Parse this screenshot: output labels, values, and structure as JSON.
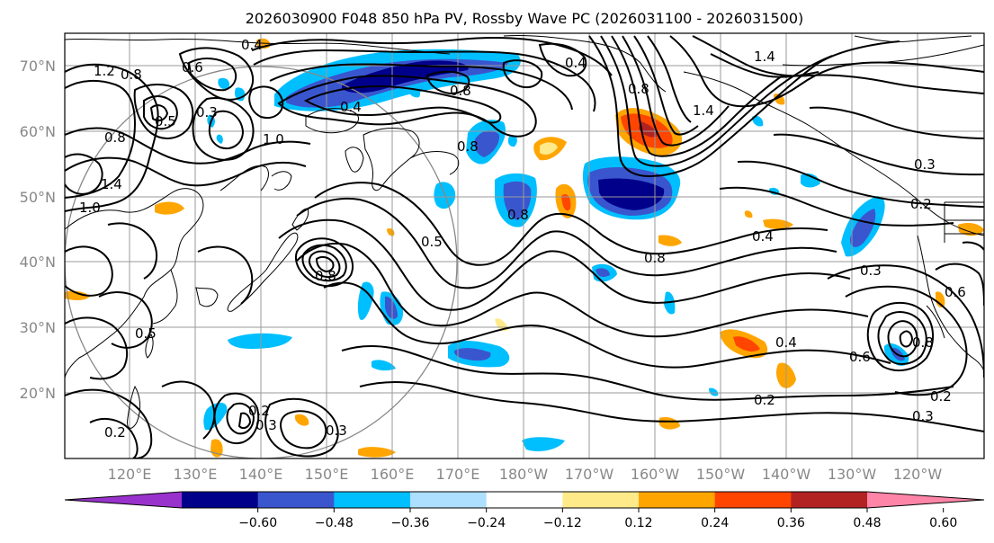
{
  "title": "2026030900 F048 850 hPa PV, Rossby Wave PC (2026031100 - 2026031500)",
  "map": {
    "projection": "PlateCarree",
    "extent_lon": [
      110,
      250
    ],
    "extent_lat": [
      10,
      75
    ],
    "lon_labels": [
      "120°E",
      "130°E",
      "140°E",
      "150°E",
      "160°E",
      "170°E",
      "180°W",
      "170°W",
      "160°W",
      "150°W",
      "140°W",
      "130°W",
      "120°W"
    ],
    "lat_labels": [
      "70°N",
      "60°N",
      "50°N",
      "40°N",
      "30°N",
      "20°N"
    ],
    "contour_labels": [
      "0.4",
      "1.2",
      "0.8",
      "0.6",
      "0.5",
      "0.8",
      "1.4",
      "1.0",
      "0.3",
      "0.4",
      "0.8",
      "0.4",
      "0.8",
      "1.4",
      "0.3",
      "0.2",
      "0.5",
      "0.8",
      "0.4",
      "0.8",
      "0.5",
      "0.2",
      "0.3",
      "0.3",
      "0.2",
      "0.2",
      "0.4",
      "0.6",
      "0.8",
      "0.3",
      "0.2",
      "0.3",
      "0.8",
      "0.6",
      "1.0",
      "0.8"
    ]
  },
  "colorbar": {
    "ticks": [
      "−0.60",
      "−0.48",
      "−0.36",
      "−0.24",
      "−0.12",
      "0.12",
      "0.24",
      "0.36",
      "0.48",
      "0.60"
    ],
    "colors": [
      "#9932CC",
      "#00008B",
      "#3A56CE",
      "#00BFFF",
      "#ADDFFF",
      "#FFFFFF",
      "#FFEA8A",
      "#FFA500",
      "#FF4500",
      "#B22222",
      "#FF85A8"
    ]
  }
}
